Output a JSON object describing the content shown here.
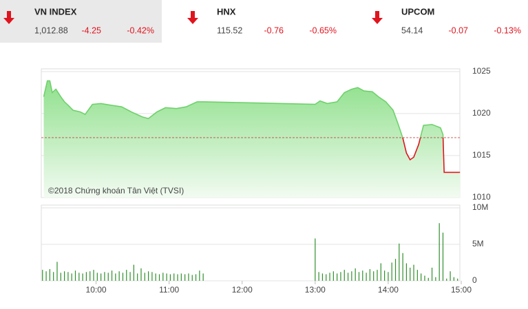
{
  "indices": [
    {
      "name": "VN INDEX",
      "value": "1,012.88",
      "change": "-4.25",
      "change_pct": "-0.42%"
    },
    {
      "name": "HNX",
      "value": "115.52",
      "change": "-0.76",
      "change_pct": "-0.65%"
    },
    {
      "name": "UPCOM",
      "value": "54.14",
      "change": "-0.07",
      "change_pct": "-0.13%"
    }
  ],
  "chart_data": [
    {
      "type": "area",
      "credit": "©2018 Chứng khoán Tân Việt (TVSI)",
      "x": [
        557,
        560,
        562,
        564,
        567,
        571,
        574,
        577,
        581,
        587,
        591,
        597,
        604,
        612,
        621,
        629,
        638,
        643,
        650,
        657,
        666,
        674,
        683,
        689,
        780,
        784,
        790,
        798,
        804,
        810,
        815,
        820,
        827,
        832,
        838,
        844,
        848,
        852,
        855,
        858,
        861,
        865,
        869,
        876,
        883,
        885,
        886,
        899
      ],
      "values": [
        1022.0,
        1023.9,
        1023.9,
        1022.5,
        1022.9,
        1022.0,
        1021.4,
        1021.0,
        1020.4,
        1020.2,
        1019.9,
        1021.1,
        1021.2,
        1021.0,
        1020.8,
        1020.2,
        1019.6,
        1019.4,
        1020.2,
        1020.7,
        1020.6,
        1020.8,
        1021.4,
        1021.4,
        1021.1,
        1021.5,
        1021.2,
        1021.4,
        1022.5,
        1022.9,
        1023.1,
        1022.7,
        1022.6,
        1022.0,
        1021.4,
        1020.4,
        1018.8,
        1017.1,
        1015.3,
        1014.5,
        1014.8,
        1016.3,
        1018.6,
        1018.7,
        1018.3,
        1017.5,
        1013.0,
        1013.0
      ],
      "reference": 1017.13,
      "reference_color": "#c0282a",
      "up_color": "#6fd16c",
      "down_color": "#e0141e",
      "xlim": [
        555,
        900
      ],
      "ylim": [
        1010,
        1025
      ],
      "yticks": [
        1010,
        1015,
        1020,
        1025
      ],
      "grid": true
    },
    {
      "type": "bar",
      "color": "#2f8f2a",
      "x": [
        556,
        559,
        562,
        565,
        568,
        571,
        574,
        577,
        580,
        583,
        586,
        589,
        592,
        595,
        598,
        601,
        604,
        607,
        610,
        613,
        616,
        619,
        622,
        625,
        628,
        631,
        634,
        637,
        640,
        643,
        646,
        649,
        652,
        655,
        658,
        661,
        664,
        667,
        670,
        673,
        676,
        679,
        682,
        685,
        688,
        780,
        783,
        786,
        789,
        792,
        795,
        798,
        801,
        804,
        807,
        810,
        813,
        816,
        819,
        822,
        825,
        828,
        831,
        834,
        837,
        840,
        843,
        846,
        849,
        852,
        855,
        858,
        861,
        864,
        867,
        870,
        873,
        876,
        879,
        882,
        885,
        888,
        891,
        894,
        897
      ],
      "values": [
        1500000,
        1300000,
        1600000,
        1200000,
        2600000,
        1100000,
        1300000,
        1200000,
        1000000,
        1400000,
        1100000,
        1000000,
        1200000,
        1300000,
        1500000,
        1100000,
        1000000,
        1200000,
        1100000,
        1400000,
        1000000,
        1300000,
        1100000,
        1500000,
        1200000,
        2200000,
        1000000,
        1700000,
        1100000,
        1300000,
        1200000,
        1000000,
        900000,
        1100000,
        1000000,
        900000,
        1000000,
        900000,
        1000000,
        900000,
        1000000,
        800000,
        900000,
        1400000,
        1000000,
        5800000,
        1200000,
        1000000,
        900000,
        1100000,
        1300000,
        1000000,
        1200000,
        1500000,
        1100000,
        1300000,
        1700000,
        1200000,
        1400000,
        1100000,
        1600000,
        1300000,
        1500000,
        2400000,
        1400000,
        1200000,
        2500000,
        3000000,
        5100000,
        3800000,
        2400000,
        1800000,
        2200000,
        1500000,
        1000000,
        700000,
        400000,
        1800000,
        500000,
        7900000,
        6600000,
        300000,
        1300000,
        500000,
        300000
      ],
      "xlim": [
        555,
        900
      ],
      "xticks": [
        {
          "value": 600,
          "label": "10:00"
        },
        {
          "value": 660,
          "label": "11:00"
        },
        {
          "value": 720,
          "label": "12:00"
        },
        {
          "value": 780,
          "label": "13:00"
        },
        {
          "value": 840,
          "label": "14:00"
        },
        {
          "value": 900,
          "label": "15:00"
        }
      ],
      "ylim": [
        0,
        10000000
      ],
      "yticks": [
        0,
        {
          "value": 5000000,
          "label": "5M"
        },
        {
          "value": 10000000,
          "label": "10M"
        }
      ],
      "grid": true
    }
  ]
}
